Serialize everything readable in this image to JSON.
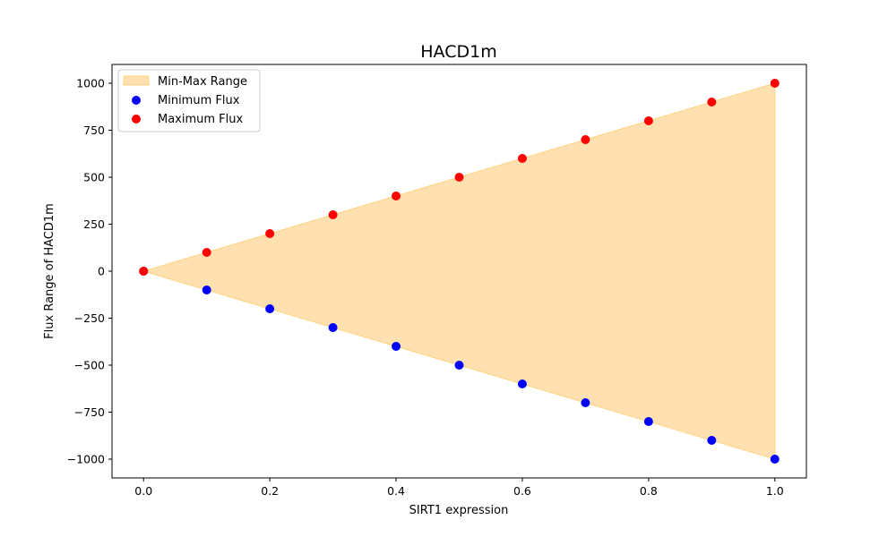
{
  "chart_data": {
    "type": "scatter",
    "title": "HACD1m",
    "xlabel": "SIRT1 expression",
    "ylabel": "Flux Range of HACD1m",
    "xlim": [
      -0.05,
      1.05
    ],
    "ylim": [
      -1100,
      1100
    ],
    "xticks": [
      0.0,
      0.2,
      0.4,
      0.6,
      0.8,
      1.0
    ],
    "xtick_labels": [
      "0.0",
      "0.2",
      "0.4",
      "0.6",
      "0.8",
      "1.0"
    ],
    "yticks": [
      -1000,
      -750,
      -500,
      -250,
      0,
      250,
      500,
      750,
      1000
    ],
    "ytick_labels": [
      "−1000",
      "−750",
      "−500",
      "−250",
      "0",
      "250",
      "500",
      "750",
      "1000"
    ],
    "grid": false,
    "legend_position": "top-left",
    "x": [
      0.0,
      0.1,
      0.2,
      0.3,
      0.4,
      0.5,
      0.6,
      0.7,
      0.8,
      0.9,
      1.0
    ],
    "fill": {
      "name": "Min-Max Range",
      "color": "#ffe0b0",
      "edge_color": "#ffd480"
    },
    "series": [
      {
        "name": "Minimum Flux",
        "color": "#0000ff",
        "values": [
          0,
          -100,
          -200,
          -300,
          -400,
          -500,
          -600,
          -700,
          -800,
          -900,
          -1000
        ]
      },
      {
        "name": "Maximum Flux",
        "color": "#ff0000",
        "values": [
          0,
          100,
          200,
          300,
          400,
          500,
          600,
          700,
          800,
          900,
          1000
        ]
      }
    ]
  }
}
